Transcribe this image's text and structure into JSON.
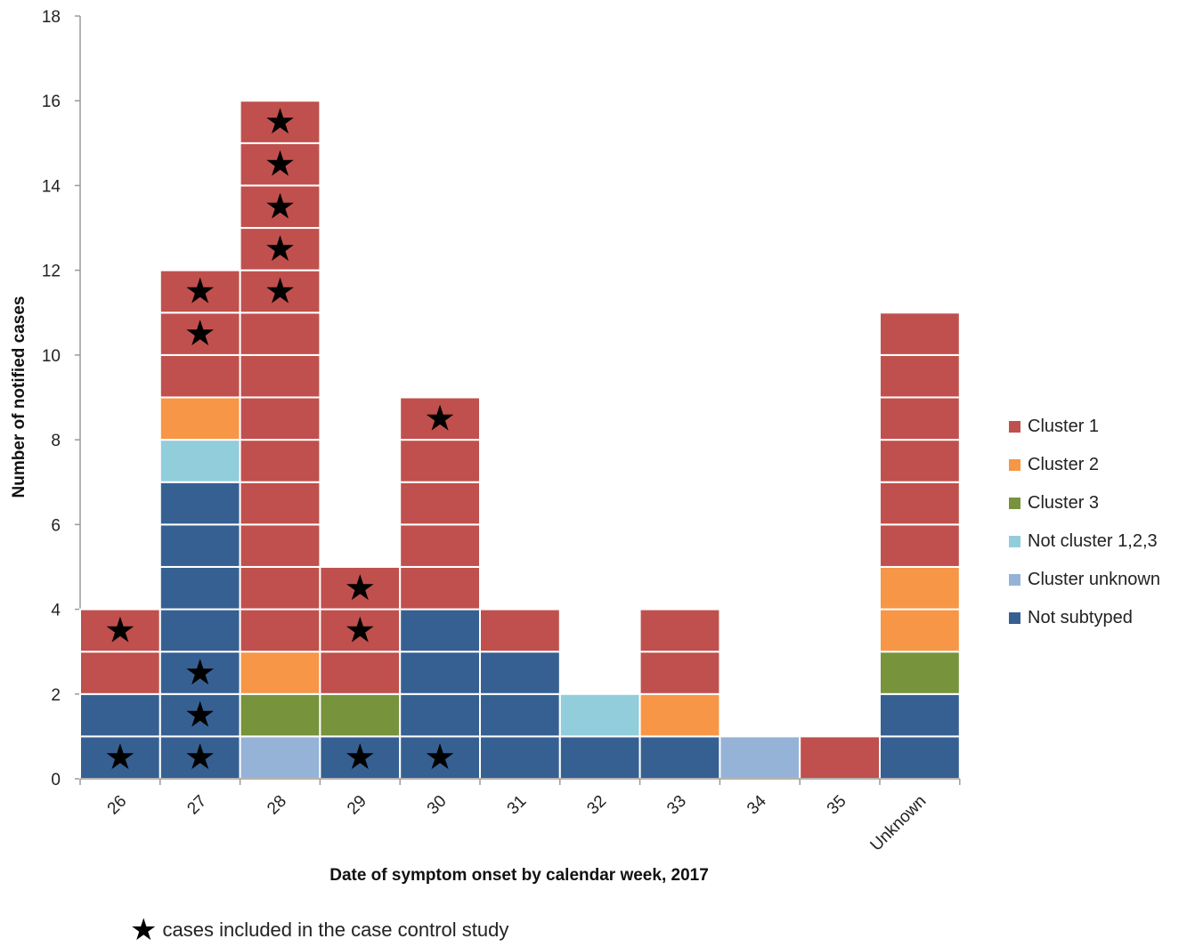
{
  "chart_data": {
    "type": "bar",
    "stacked": true,
    "xlabel": "Date of symptom onset by calendar week, 2017",
    "ylabel": "Number of notified cases",
    "ylim": [
      0,
      18
    ],
    "yticks": [
      0,
      2,
      4,
      6,
      8,
      10,
      12,
      14,
      16,
      18
    ],
    "categories": [
      "26",
      "27",
      "28",
      "29",
      "30",
      "31",
      "32",
      "33",
      "34",
      "35",
      "Unknown"
    ],
    "series": [
      {
        "name": "Cluster 1",
        "color": "#c0504d",
        "values": [
          2,
          3,
          13,
          3,
          5,
          1,
          0,
          2,
          0,
          1,
          6
        ]
      },
      {
        "name": "Cluster 2",
        "color": "#f79646",
        "values": [
          0,
          1,
          1,
          0,
          0,
          0,
          0,
          1,
          0,
          0,
          2
        ]
      },
      {
        "name": "Cluster 3",
        "color": "#77933c",
        "values": [
          0,
          0,
          1,
          1,
          0,
          0,
          0,
          0,
          0,
          0,
          1
        ]
      },
      {
        "name": "Not cluster 1,2,3",
        "color": "#92cddc",
        "values": [
          0,
          1,
          0,
          0,
          0,
          0,
          1,
          0,
          0,
          0,
          0
        ]
      },
      {
        "name": "Cluster unknown",
        "color": "#95b3d7",
        "values": [
          0,
          0,
          1,
          0,
          0,
          0,
          0,
          0,
          1,
          0,
          0
        ]
      },
      {
        "name": "Not subtyped",
        "color": "#366092",
        "values": [
          2,
          7,
          0,
          1,
          4,
          3,
          1,
          1,
          0,
          0,
          2
        ]
      }
    ],
    "stack_order_bottom_to_top": [
      "Cluster unknown",
      "Not subtyped",
      "Not cluster 1,2,3",
      "Cluster 3",
      "Cluster 2",
      "Cluster 1"
    ],
    "starred_cases": [
      {
        "category": "26",
        "case_levels": [
          1,
          4
        ]
      },
      {
        "category": "27",
        "case_levels": [
          1,
          2,
          3,
          11,
          12
        ]
      },
      {
        "category": "28",
        "case_levels": [
          12,
          13,
          14,
          15,
          16
        ]
      },
      {
        "category": "29",
        "case_levels": [
          1,
          4,
          5
        ]
      },
      {
        "category": "30",
        "case_levels": [
          1,
          9
        ]
      }
    ],
    "legend_position": "right",
    "grid": false
  },
  "footnote": {
    "symbol": "★",
    "text": "cases included in the case control study"
  }
}
